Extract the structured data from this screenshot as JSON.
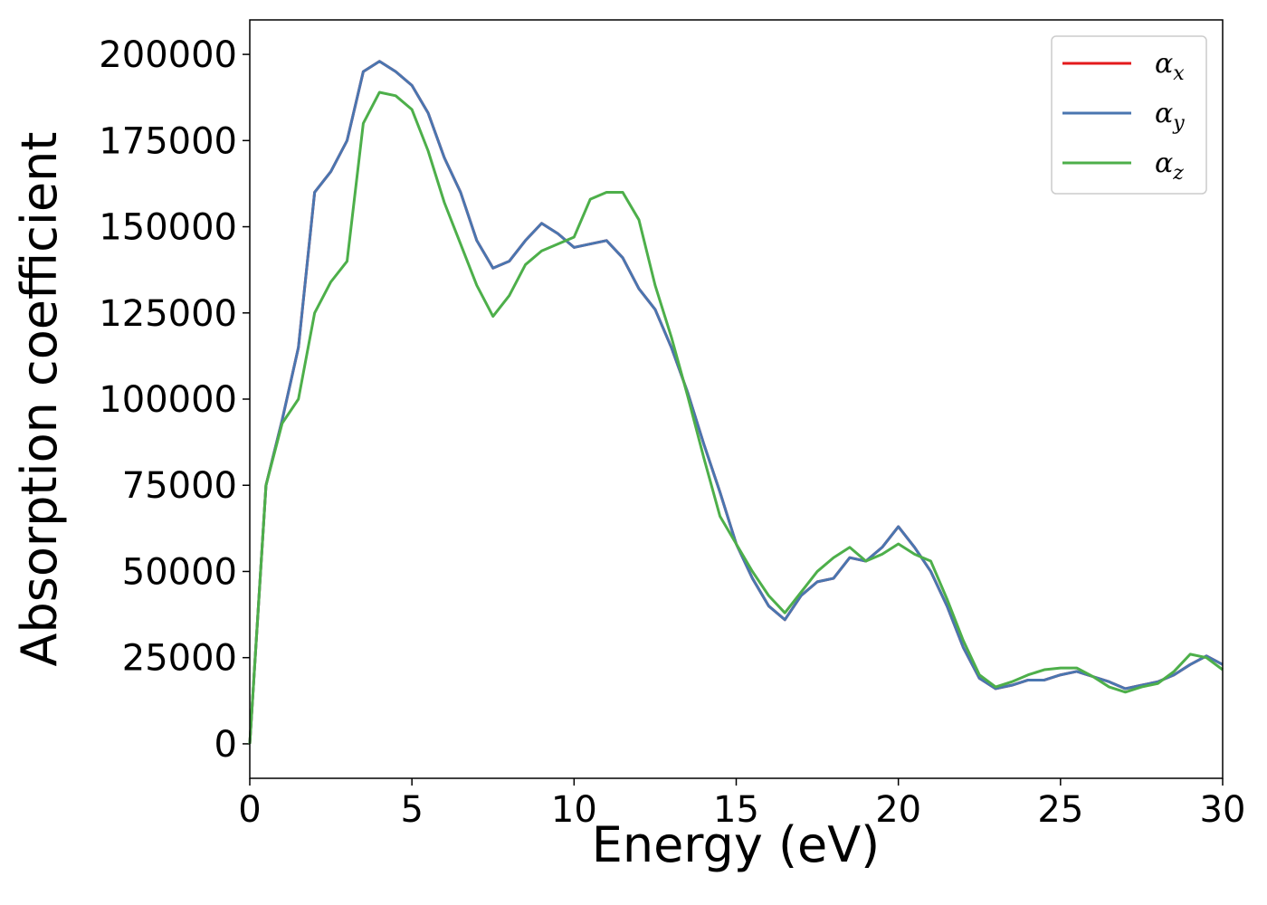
{
  "chart_data": {
    "type": "line",
    "x_label": "Energy (eV)",
    "y_label": "Absorption coefficient",
    "x": [
      0,
      0.5,
      1,
      1.5,
      2,
      2.5,
      3,
      3.5,
      4,
      4.5,
      5,
      5.5,
      6,
      6.5,
      7,
      7.5,
      8,
      8.5,
      9,
      9.5,
      10,
      10.5,
      11,
      11.5,
      12,
      12.5,
      13,
      13.5,
      14,
      14.5,
      15,
      15.5,
      16,
      16.5,
      17,
      17.5,
      18,
      18.5,
      19,
      19.5,
      20,
      20.5,
      21,
      21.5,
      22,
      22.5,
      23,
      23.5,
      24,
      24.5,
      25,
      25.5,
      26,
      26.5,
      27,
      27.5,
      28,
      28.5,
      29,
      29.5,
      30
    ],
    "series": [
      {
        "name": "αx",
        "color": "#e41a1c",
        "values": [
          0,
          75000,
          94000,
          115000,
          160000,
          166000,
          175000,
          195000,
          198000,
          195000,
          191000,
          183000,
          170000,
          160000,
          146000,
          138000,
          140000,
          146000,
          151000,
          148000,
          144000,
          145000,
          146000,
          141000,
          132000,
          126000,
          115000,
          102000,
          87000,
          73000,
          58000,
          48000,
          40000,
          36000,
          43000,
          47000,
          48000,
          54000,
          53000,
          57000,
          63000,
          57000,
          50000,
          40000,
          28000,
          19000,
          16000,
          17000,
          18500,
          18500,
          20000,
          21000,
          19500,
          18000,
          16000,
          17000,
          18000,
          20000,
          23000,
          25500,
          23000
        ]
      },
      {
        "name": "αy",
        "color": "#4a76b0",
        "values": [
          0,
          75000,
          94000,
          115000,
          160000,
          166000,
          175000,
          195000,
          198000,
          195000,
          191000,
          183000,
          170000,
          160000,
          146000,
          138000,
          140000,
          146000,
          151000,
          148000,
          144000,
          145000,
          146000,
          141000,
          132000,
          126000,
          115000,
          102000,
          87000,
          73000,
          58000,
          48000,
          40000,
          36000,
          43000,
          47000,
          48000,
          54000,
          53000,
          57000,
          63000,
          57000,
          50000,
          40000,
          28000,
          19000,
          16000,
          17000,
          18500,
          18500,
          20000,
          21000,
          19500,
          18000,
          16000,
          17000,
          18000,
          20000,
          23000,
          25500,
          23000
        ]
      },
      {
        "name": "αz",
        "color": "#4daf4a",
        "values": [
          0,
          75000,
          93000,
          100000,
          125000,
          134000,
          140000,
          180000,
          189000,
          188000,
          184000,
          172000,
          157000,
          145000,
          133000,
          124000,
          130000,
          139000,
          143000,
          145000,
          147000,
          158000,
          160000,
          160000,
          152000,
          133000,
          118000,
          101000,
          83000,
          66000,
          58000,
          50000,
          43000,
          38000,
          44000,
          50000,
          54000,
          57000,
          53000,
          55000,
          58000,
          55000,
          53000,
          42000,
          30000,
          20000,
          16500,
          18000,
          20000,
          21500,
          22000,
          22000,
          19500,
          16500,
          15000,
          16500,
          17500,
          21000,
          26000,
          25000,
          21500
        ]
      }
    ],
    "xlim": [
      0,
      30
    ],
    "xticks": [
      0,
      5,
      10,
      15,
      20,
      25,
      30
    ],
    "ylim": [
      -10000,
      210000
    ],
    "yticks": [
      0,
      25000,
      50000,
      75000,
      100000,
      125000,
      150000,
      175000,
      200000
    ],
    "legend": "upper right"
  }
}
